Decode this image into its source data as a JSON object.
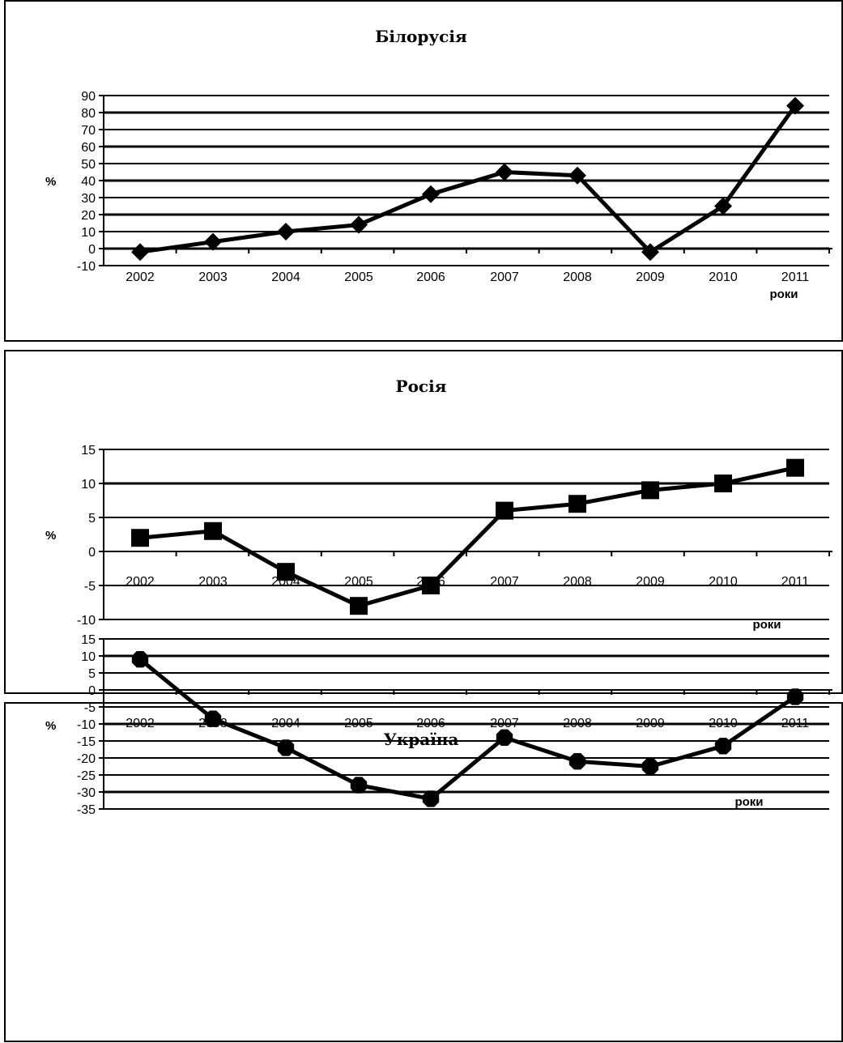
{
  "chart_data": [
    {
      "type": "line",
      "title": "Білорусія",
      "ylabel": "%",
      "xlabel": "роки",
      "categories": [
        "2002",
        "2003",
        "2004",
        "2005",
        "2006",
        "2007",
        "2008",
        "2009",
        "2010",
        "2011"
      ],
      "values": [
        -2,
        4,
        10,
        14,
        32,
        45,
        43,
        -2,
        25,
        84
      ],
      "ylim": [
        -10,
        90
      ],
      "yticks": [
        -10,
        0,
        10,
        20,
        30,
        40,
        50,
        60,
        70,
        80,
        90
      ],
      "marker": "diamond",
      "grid": true
    },
    {
      "type": "line",
      "title": "Росія",
      "ylabel": "%",
      "xlabel": "роки",
      "categories": [
        "2002",
        "2003",
        "2004",
        "2005",
        "2006",
        "2007",
        "2008",
        "2009",
        "2010",
        "2011"
      ],
      "values": [
        2,
        3,
        -3,
        -8,
        -5,
        6,
        7,
        9,
        10,
        12.3
      ],
      "ylim": [
        -10,
        15
      ],
      "yticks": [
        -10,
        -5,
        0,
        5,
        10,
        15
      ],
      "marker": "square",
      "grid": true
    },
    {
      "type": "line",
      "title": "Україна",
      "ylabel": "%",
      "xlabel": "роки",
      "categories": [
        "2002",
        "2003",
        "2004",
        "2005",
        "2006",
        "2007",
        "2008",
        "2009",
        "2010",
        "2011"
      ],
      "values": [
        9,
        -8.5,
        -17,
        -28,
        -32,
        -14,
        -21,
        -22.5,
        -16.5,
        -2
      ],
      "ylim": [
        -35,
        15
      ],
      "yticks": [
        -35,
        -30,
        -25,
        -20,
        -15,
        -10,
        -5,
        0,
        5,
        10,
        15
      ],
      "marker": "circle",
      "grid": true
    }
  ]
}
